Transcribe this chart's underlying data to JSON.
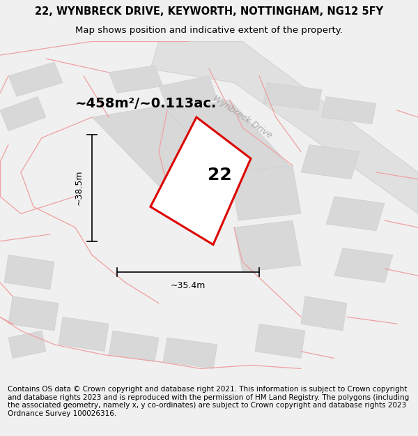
{
  "title": "22, WYNBRECK DRIVE, KEYWORTH, NOTTINGHAM, NG12 5FY",
  "subtitle": "Map shows position and indicative extent of the property.",
  "area_text": "~458m²/~0.113ac.",
  "label_number": "22",
  "dim_width": "~35.4m",
  "dim_height": "~38.5m",
  "road_label": "Wynbreck Drive",
  "footer": "Contains OS data © Crown copyright and database right 2021. This information is subject to Crown copyright and database rights 2023 and is reproduced with the permission of HM Land Registry. The polygons (including the associated geometry, namely x, y co-ordinates) are subject to Crown copyright and database rights 2023 Ordnance Survey 100026316.",
  "bg_color": "#f0f0f0",
  "map_bg": "#ffffff",
  "plot_color": "#dd0000",
  "building_fill": "#d8d8d8",
  "building_edge": "#cccccc",
  "boundary_color": "#f0a0a0",
  "road_fill": "#e0e0e0",
  "title_fontsize": 10.5,
  "subtitle_fontsize": 9.5,
  "footer_fontsize": 7.5,
  "area_fontsize": 14,
  "label_fontsize": 18,
  "dim_fontsize": 9,
  "road_fontsize": 9
}
